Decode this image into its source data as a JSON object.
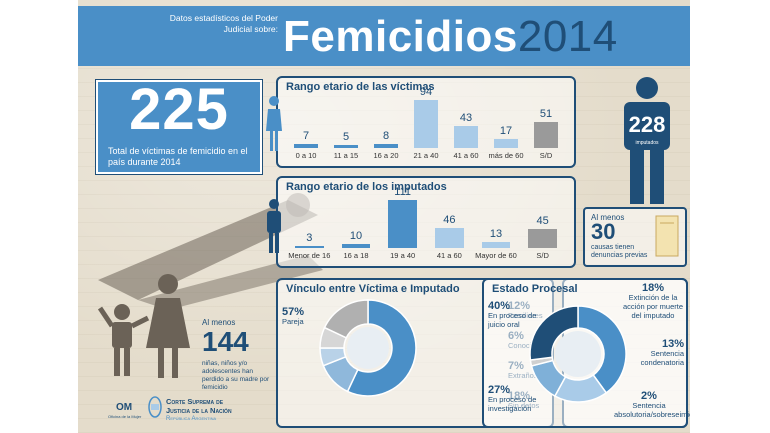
{
  "header": {
    "subtitle": "Datos estadísticos del Poder Judicial sobre:",
    "title_word": "Femicidios",
    "title_year": "2014"
  },
  "total": {
    "value": "225",
    "label": "Total de víctimas de femicidio en el país durante 2014"
  },
  "imputados_total": {
    "value": "228",
    "label": "imputados"
  },
  "causas": {
    "pre": "Al menos",
    "value": "30",
    "label": "causas tienen denuncias previas"
  },
  "ninos": {
    "pre": "Al menos",
    "value": "144",
    "label": "niñas, niños y/o adolescentes han perdido a su madre por femicidio"
  },
  "footer": {
    "om": "OM",
    "om_sub": "Oficina de la Mujer",
    "court_line1": "Corte Suprema de",
    "court_line2": "Justicia de la Nación",
    "court_line3": "República Argentina"
  },
  "colors": {
    "dark_blue": "#1f4e77",
    "mid_blue": "#4a8fc7",
    "light_blue": "#a9cbe8",
    "gray": "#9a9a9a"
  },
  "chart_data": [
    {
      "type": "bar",
      "title": "Rango etario de las víctimas",
      "categories": [
        "0 a 10",
        "11 a 15",
        "16 a 20",
        "21 a 40",
        "41 a 60",
        "más de 60",
        "S/D"
      ],
      "values": [
        7,
        5,
        8,
        94,
        43,
        17,
        51
      ]
    },
    {
      "type": "bar",
      "title": "Rango etario de los imputados",
      "categories": [
        "Menor de 16",
        "16 a 18",
        "19 a 40",
        "41 a 60",
        "Mayor de 60",
        "S/D"
      ],
      "values": [
        3,
        10,
        111,
        46,
        13,
        45
      ]
    },
    {
      "type": "pie",
      "title": "Vínculo entre Víctima e Imputado",
      "categories": [
        "Pareja",
        "Familiares",
        "Conocidos",
        "Extraños",
        "Sin datos"
      ],
      "values": [
        57,
        12,
        6,
        7,
        18
      ],
      "labels": [
        "57%",
        "12%",
        "6%",
        "7%",
        "18%"
      ]
    },
    {
      "type": "pie",
      "title": "Estado Procesal",
      "categories": [
        "En proceso de juicio oral",
        "Extinción de la acción por muerte del imputado",
        "Sentencia condenatoria",
        "Sentencia absolutoria/sobreseimiento",
        "En proceso de investigación"
      ],
      "values": [
        40,
        18,
        13,
        2,
        27
      ],
      "labels": [
        "40%",
        "18%",
        "13%",
        "2%",
        "27%"
      ]
    }
  ]
}
